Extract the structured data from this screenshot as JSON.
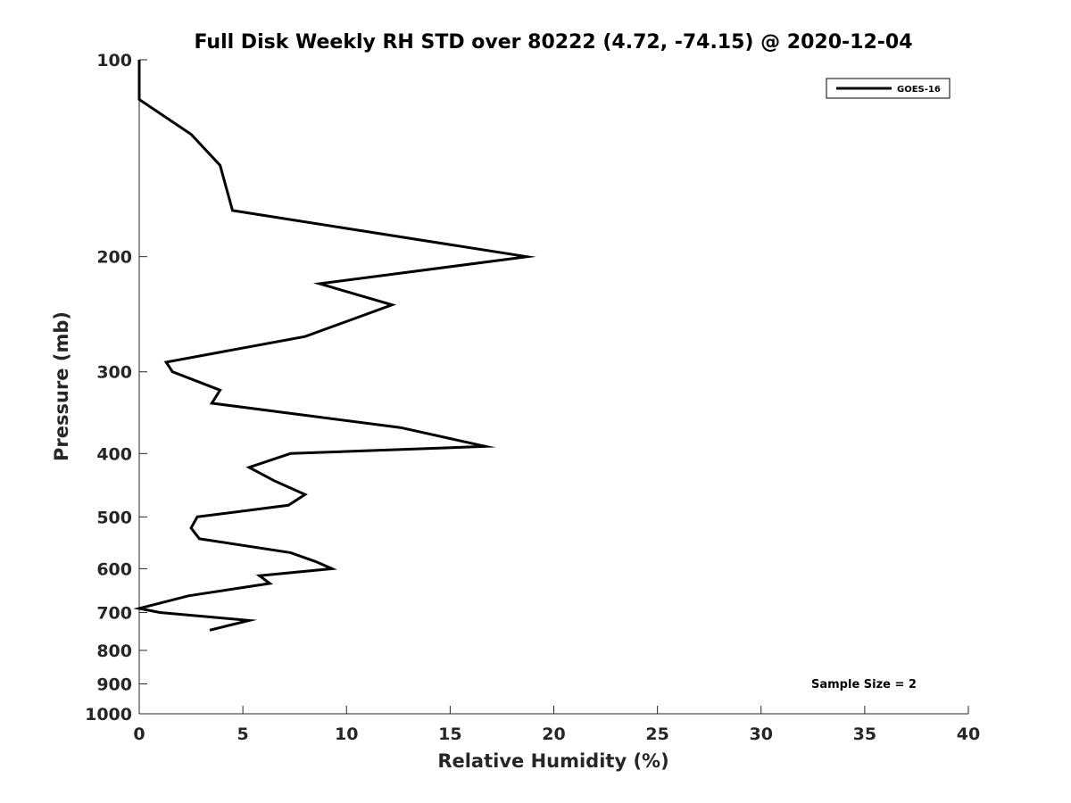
{
  "chart_data": {
    "type": "line",
    "title": "Full Disk Weekly RH STD over 80222 (4.72, -74.15) @ 2020-12-04",
    "xlabel": "Relative Humidity (%)",
    "ylabel": "Pressure (mb)",
    "xlim": [
      0,
      40
    ],
    "ylim": [
      100,
      1000
    ],
    "yscale": "log",
    "y_reversed": true,
    "x_ticks": [
      0,
      5,
      10,
      15,
      20,
      25,
      30,
      35,
      40
    ],
    "y_ticks": [
      100,
      200,
      300,
      400,
      500,
      600,
      700,
      800,
      900,
      1000
    ],
    "grid": false,
    "legend_position": "top-right",
    "series": [
      {
        "name": "GOES-16",
        "color": "#000000",
        "x": [
          0,
          0,
          2.5,
          3.9,
          4.5,
          18.7,
          8.7,
          12.2,
          8.0,
          1.3,
          1.6,
          3.9,
          3.5,
          12.6,
          16.7,
          7.3,
          5.3,
          6.5,
          8.0,
          7.2,
          2.8,
          2.5,
          2.9,
          7.3,
          8.5,
          9.3,
          5.8,
          6.3,
          2.4,
          0,
          1.0,
          5.3,
          3.4
        ],
        "y": [
          100,
          115,
          130,
          145,
          170,
          200,
          220,
          237,
          265,
          290,
          300,
          320,
          335,
          365,
          390,
          400,
          420,
          440,
          462,
          480,
          500,
          520,
          540,
          567,
          585,
          600,
          615,
          632,
          660,
          690,
          700,
          720,
          745
        ]
      }
    ],
    "annotations": [
      "Sample Size = 2"
    ]
  }
}
